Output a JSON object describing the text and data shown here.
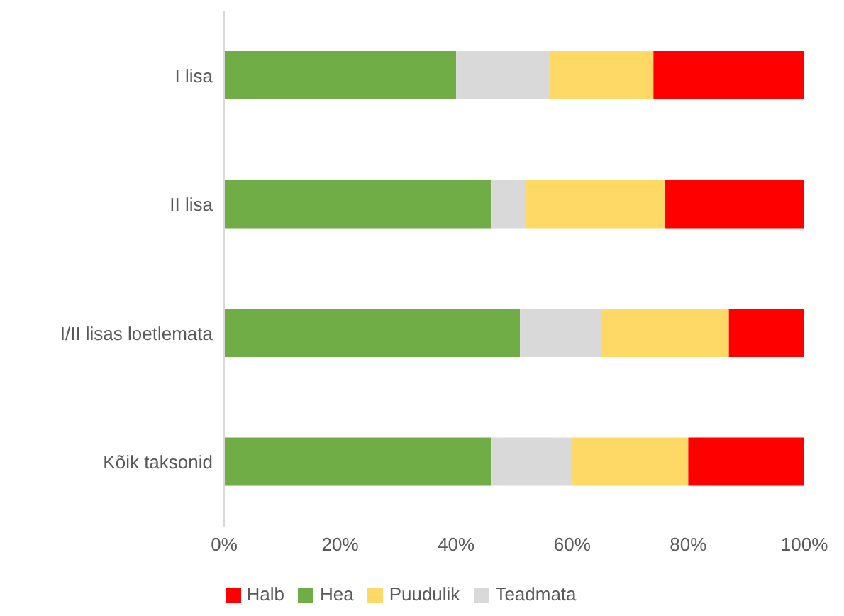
{
  "chart_data": {
    "type": "bar",
    "orientation": "horizontal",
    "stacked": true,
    "categories": [
      "I lisa",
      "II lisa",
      "I/II lisas loetlemata",
      "Kõik taksonid"
    ],
    "series": [
      {
        "name": "Hea",
        "color": "#70ad47",
        "values": [
          40,
          46,
          51,
          46
        ]
      },
      {
        "name": "Teadmata",
        "color": "#d9d9d9",
        "values": [
          16,
          6,
          14,
          14
        ]
      },
      {
        "name": "Puudulik",
        "color": "#ffd966",
        "values": [
          18,
          24,
          22,
          20
        ]
      },
      {
        "name": "Halb",
        "color": "#ff0000",
        "values": [
          26,
          24,
          13,
          20
        ]
      }
    ],
    "xlim": [
      0,
      100
    ],
    "xticks": [
      {
        "value": 0,
        "label": "0%"
      },
      {
        "value": 20,
        "label": "20%"
      },
      {
        "value": 40,
        "label": "40%"
      },
      {
        "value": 60,
        "label": "60%"
      },
      {
        "value": 80,
        "label": "80%"
      },
      {
        "value": 100,
        "label": "100%"
      }
    ],
    "grid": false,
    "legend": "bottom"
  }
}
